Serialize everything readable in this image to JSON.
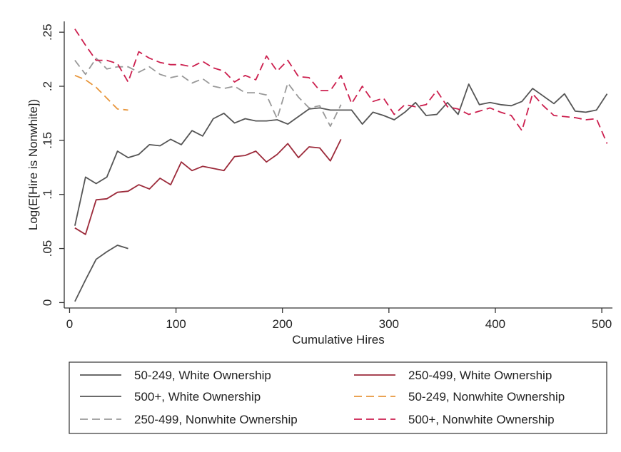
{
  "chart_data": {
    "type": "line",
    "title": "",
    "xlabel": "Cumulative Hires",
    "ylabel": "Log(E[Hire is Nonwhite])",
    "xlim": [
      -5,
      510
    ],
    "ylim": [
      -0.005,
      0.26
    ],
    "xticks": [
      0,
      100,
      200,
      300,
      400,
      500
    ],
    "yticks": [
      0,
      0.05,
      0.1,
      0.15,
      0.2,
      0.25
    ],
    "ytick_labels": [
      "0",
      ".05",
      ".1",
      ".15",
      ".2",
      ".25"
    ],
    "grid": false,
    "legend_position": "bottom",
    "series": [
      {
        "name": "50-249, White Ownership",
        "color": "#555555",
        "dash": "solid",
        "x": [
          5,
          15,
          25,
          35,
          45,
          55
        ],
        "y": [
          0.001,
          0.021,
          0.04,
          0.047,
          0.053,
          0.05
        ]
      },
      {
        "name": "250-499, White Ownership",
        "color": "#9c2a3a",
        "dash": "solid",
        "x": [
          5,
          15,
          25,
          35,
          45,
          55,
          65,
          75,
          85,
          95,
          105,
          115,
          125,
          135,
          145,
          155,
          165,
          175,
          185,
          195,
          205,
          215,
          225,
          235,
          245,
          255
        ],
        "y": [
          0.069,
          0.063,
          0.095,
          0.096,
          0.102,
          0.103,
          0.109,
          0.105,
          0.115,
          0.109,
          0.13,
          0.122,
          0.126,
          0.124,
          0.122,
          0.135,
          0.136,
          0.14,
          0.13,
          0.137,
          0.147,
          0.134,
          0.144,
          0.143,
          0.131,
          0.151
        ]
      },
      {
        "name": "500+, White Ownership",
        "color": "#555555",
        "dash": "solid",
        "x": [
          5,
          15,
          25,
          35,
          45,
          55,
          65,
          75,
          85,
          95,
          105,
          115,
          125,
          135,
          145,
          155,
          165,
          175,
          185,
          195,
          205,
          215,
          225,
          235,
          245,
          255,
          265,
          275,
          285,
          295,
          305,
          315,
          325,
          335,
          345,
          355,
          365,
          375,
          385,
          395,
          405,
          415,
          425,
          435,
          445,
          455,
          465,
          475,
          485,
          495,
          505
        ],
        "y": [
          0.071,
          0.116,
          0.11,
          0.116,
          0.14,
          0.134,
          0.137,
          0.146,
          0.145,
          0.151,
          0.146,
          0.159,
          0.154,
          0.17,
          0.175,
          0.166,
          0.17,
          0.168,
          0.168,
          0.169,
          0.165,
          0.172,
          0.179,
          0.18,
          0.178,
          0.178,
          0.178,
          0.165,
          0.176,
          0.173,
          0.169,
          0.176,
          0.185,
          0.173,
          0.174,
          0.185,
          0.174,
          0.202,
          0.183,
          0.185,
          0.183,
          0.182,
          0.186,
          0.198,
          0.191,
          0.184,
          0.193,
          0.177,
          0.176,
          0.178,
          0.193
        ]
      },
      {
        "name": "50-249, Nonwhite Ownership",
        "color": "#e8963c",
        "dash": "dashed",
        "x": [
          5,
          15,
          25,
          35,
          45,
          55
        ],
        "y": [
          0.21,
          0.206,
          0.199,
          0.189,
          0.179,
          0.178
        ]
      },
      {
        "name": "250-499, Nonwhite Ownership",
        "color": "#999999",
        "dash": "dashed",
        "x": [
          5,
          15,
          25,
          35,
          45,
          55,
          65,
          75,
          85,
          95,
          105,
          115,
          125,
          135,
          145,
          155,
          165,
          175,
          185,
          195,
          205,
          215,
          225,
          235,
          245,
          255
        ],
        "y": [
          0.224,
          0.211,
          0.226,
          0.216,
          0.218,
          0.218,
          0.213,
          0.218,
          0.211,
          0.208,
          0.21,
          0.203,
          0.207,
          0.2,
          0.198,
          0.2,
          0.194,
          0.194,
          0.192,
          0.17,
          0.203,
          0.19,
          0.18,
          0.182,
          0.163,
          0.183
        ]
      },
      {
        "name": "500+, Nonwhite Ownership",
        "color": "#cc1f4e",
        "dash": "dashed",
        "x": [
          5,
          15,
          25,
          35,
          45,
          55,
          65,
          75,
          85,
          95,
          105,
          115,
          125,
          135,
          145,
          155,
          165,
          175,
          185,
          195,
          205,
          215,
          225,
          235,
          245,
          255,
          265,
          275,
          285,
          295,
          305,
          315,
          325,
          335,
          345,
          355,
          365,
          375,
          385,
          395,
          405,
          415,
          425,
          435,
          445,
          455,
          465,
          475,
          485,
          495,
          505
        ],
        "y": [
          0.253,
          0.238,
          0.224,
          0.224,
          0.221,
          0.204,
          0.232,
          0.226,
          0.222,
          0.22,
          0.22,
          0.218,
          0.223,
          0.217,
          0.214,
          0.204,
          0.21,
          0.206,
          0.228,
          0.214,
          0.224,
          0.209,
          0.208,
          0.196,
          0.196,
          0.21,
          0.184,
          0.2,
          0.186,
          0.189,
          0.174,
          0.183,
          0.181,
          0.183,
          0.196,
          0.181,
          0.179,
          0.174,
          0.177,
          0.18,
          0.176,
          0.173,
          0.159,
          0.193,
          0.182,
          0.173,
          0.172,
          0.171,
          0.169,
          0.17,
          0.147
        ]
      }
    ]
  }
}
